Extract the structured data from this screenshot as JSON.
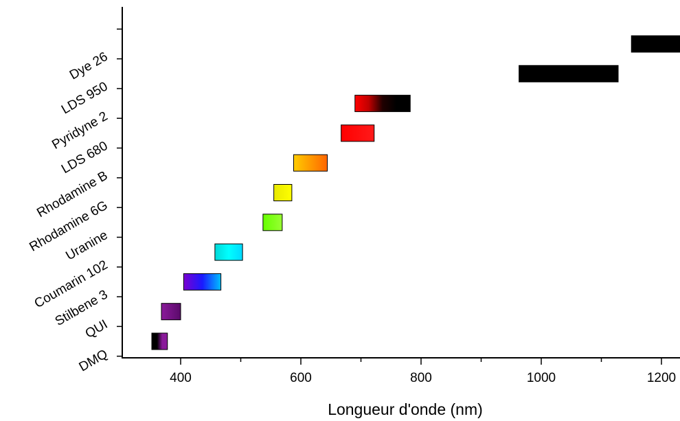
{
  "chart_data": {
    "type": "bar",
    "orientation": "horizontal-range",
    "xlabel": "Longueur d'onde (nm)",
    "ylabel": "",
    "xlim": [
      300,
      1240
    ],
    "xticks": [
      400,
      600,
      800,
      1000,
      1200
    ],
    "xticks_minor": [
      300,
      500,
      700,
      900,
      1100
    ],
    "grid": false,
    "categories": [
      "DMQ",
      "QUI",
      "Stilbene 3",
      "Coumarin 102",
      "Uranine",
      "Rhodamine 6G",
      "Rhodamine B",
      "LDS 680",
      "Pyridyne 2",
      "LDS 950",
      "Dye 26"
    ],
    "ranges": [
      {
        "dye": "DMQ",
        "start": 352,
        "end": 378,
        "colors": [
          "#000000",
          "#000000",
          "#8a1a9a",
          "#8a1a9a"
        ]
      },
      {
        "dye": "QUI",
        "start": 368,
        "end": 400,
        "colors": [
          "#8a1a9a",
          "#5a0a6a"
        ]
      },
      {
        "dye": "Stilbene 3",
        "start": 405,
        "end": 467,
        "colors": [
          "#7a00d0",
          "#1a1aff",
          "#00c0ff"
        ]
      },
      {
        "dye": "Coumarin 102",
        "start": 457,
        "end": 503,
        "colors": [
          "#00d8d8",
          "#00ffff",
          "#00d8ff"
        ]
      },
      {
        "dye": "Uranine",
        "start": 537,
        "end": 569,
        "colors": [
          "#66ff00",
          "#99ff33"
        ]
      },
      {
        "dye": "Rhodamine 6G",
        "start": 555,
        "end": 585,
        "colors": [
          "#e8e800",
          "#ffff00"
        ]
      },
      {
        "dye": "Rhodamine B",
        "start": 588,
        "end": 644,
        "colors": [
          "#ffcc00",
          "#ff6600"
        ]
      },
      {
        "dye": "LDS 680",
        "start": 667,
        "end": 722,
        "colors": [
          "#ff0000",
          "#ff1a1a"
        ]
      },
      {
        "dye": "Pyridyne 2",
        "start": 690,
        "end": 782,
        "colors": [
          "#ff0000",
          "#c00000",
          "#200000",
          "#000000",
          "#000000"
        ]
      },
      {
        "dye": "LDS 950",
        "start": 963,
        "end": 1128,
        "colors": [
          "#000000"
        ]
      },
      {
        "dye": "Dye 26",
        "start": 1150,
        "end": 1240,
        "colors": [
          "#000000"
        ]
      }
    ]
  }
}
